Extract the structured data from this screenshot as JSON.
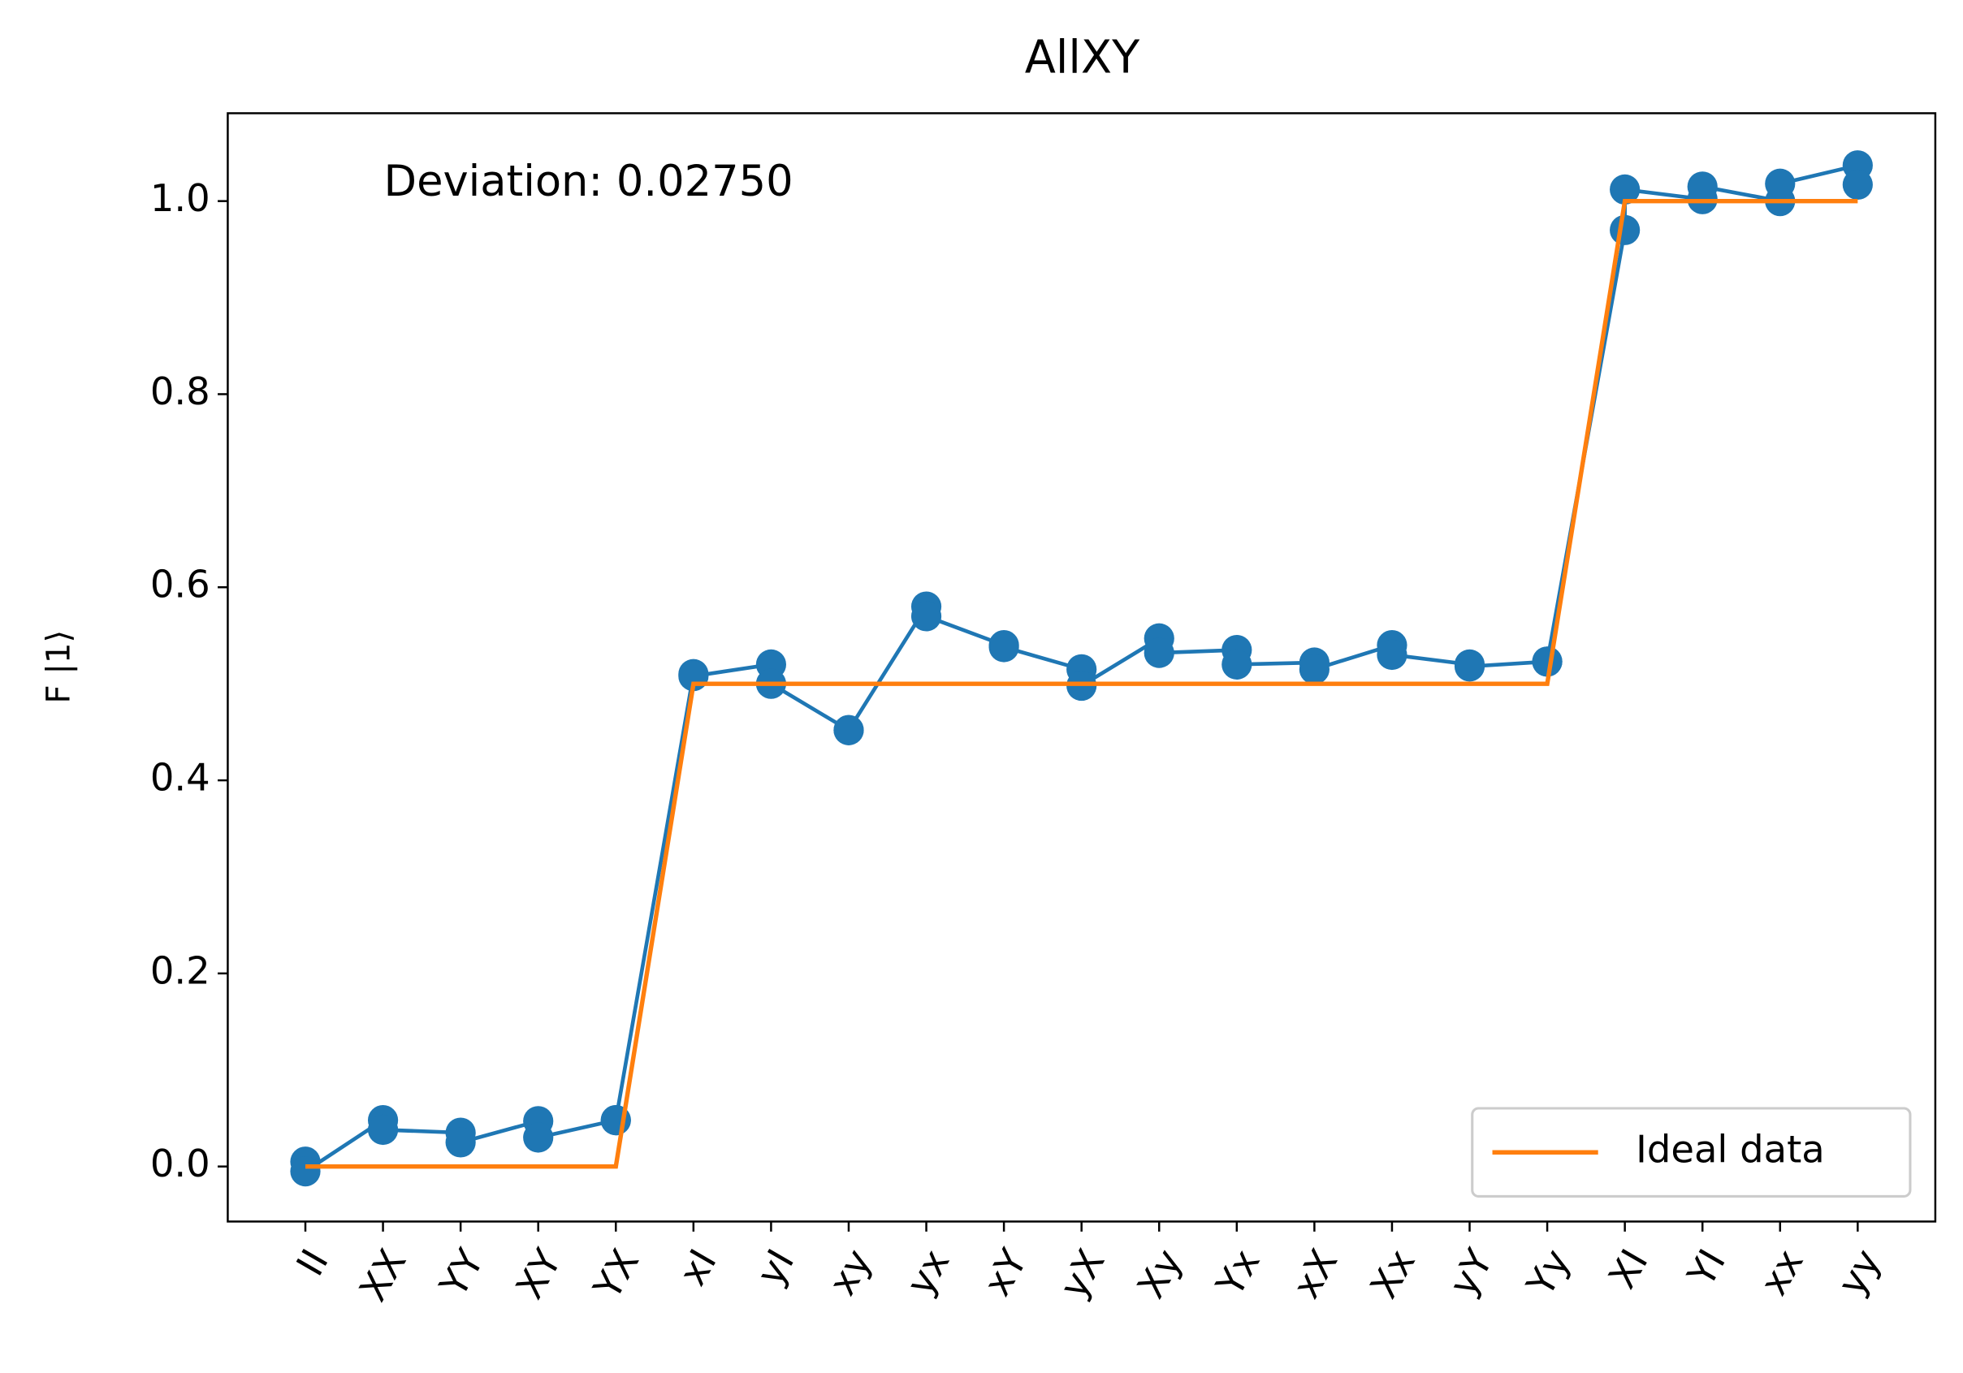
{
  "chart_data": {
    "type": "line",
    "title": "AllXY",
    "ylabel": "F |1⟩",
    "annotation": "Deviation: 0.02750",
    "categories": [
      "II",
      "XX",
      "YY",
      "XY",
      "YX",
      "xI",
      "yI",
      "xy",
      "yx",
      "xY",
      "yX",
      "Xy",
      "Yx",
      "xX",
      "Xx",
      "yY",
      "Yy",
      "XI",
      "YI",
      "xx",
      "yy"
    ],
    "series": [
      {
        "color": "#1f77b4",
        "values": [
          0.005,
          0.048,
          0.035,
          0.047,
          0.048,
          0.51,
          0.52,
          0.452,
          0.58,
          0.54,
          0.515,
          0.547,
          0.535,
          0.522,
          0.54,
          0.52,
          0.523,
          0.97,
          1.002,
          1.0,
          1.037
        ]
      },
      {
        "color": "#1f77b4",
        "values": [
          -0.005,
          0.038,
          0.025,
          0.03,
          0.048,
          0.508,
          0.5,
          0.452,
          0.57,
          0.538,
          0.498,
          0.532,
          0.52,
          0.515,
          0.53,
          0.518,
          0.523,
          1.012,
          1.015,
          1.018,
          1.017
        ]
      },
      {
        "name": "Ideal data",
        "color": "#ff7f0e",
        "values": [
          0,
          0,
          0,
          0,
          0,
          0.5,
          0.5,
          0.5,
          0.5,
          0.5,
          0.5,
          0.5,
          0.5,
          0.5,
          0.5,
          0.5,
          0.5,
          1,
          1,
          1,
          1
        ]
      }
    ],
    "xlim": [
      -1,
      21
    ],
    "ylim": [
      -0.057,
      1.091
    ],
    "yticks": [
      {
        "value": 0,
        "label": "0.0"
      },
      0.2,
      0.4,
      0.6,
      0.8,
      {
        "value": 1,
        "label": "1.0"
      }
    ],
    "legend": "lower right"
  }
}
